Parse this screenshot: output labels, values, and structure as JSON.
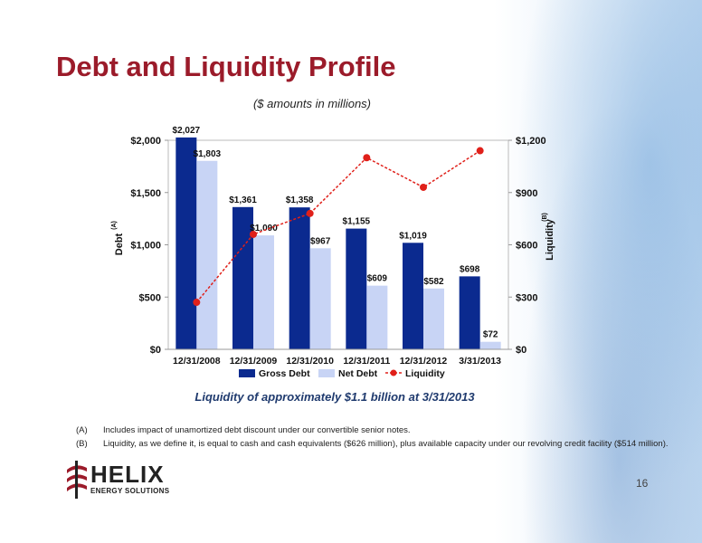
{
  "title": "Debt and Liquidity Profile",
  "subtitle": "($ amounts in millions)",
  "caption": "Liquidity of approximately $1.1 billion at 3/31/2013",
  "notes": [
    {
      "mark": "(A)",
      "text": "Includes impact of unamortized debt discount under our convertible senior notes."
    },
    {
      "mark": "(B)",
      "text": "Liquidity, as we define it, is equal to cash and cash equivalents ($626 million), plus available capacity under our revolving credit facility ($514 million)."
    }
  ],
  "logo": {
    "name": "HELIX",
    "sub": "ENERGY SOLUTIONS"
  },
  "page_number": "16",
  "colors": {
    "gross": "#0b2a8f",
    "net": "#c8d4f5",
    "liquidity": "#e0201a",
    "title": "#9b1b2a"
  },
  "chart_data": {
    "type": "bar",
    "categories": [
      "12/31/2008",
      "12/31/2009",
      "12/31/2010",
      "12/31/2011",
      "12/31/2012",
      "3/31/2013"
    ],
    "series": [
      {
        "name": "Gross Debt",
        "type": "bar",
        "axis": "left",
        "values": [
          2027,
          1361,
          1358,
          1155,
          1019,
          698
        ],
        "labels": [
          "$2,027",
          "$1,361",
          "$1,358",
          "$1,155",
          "$1,019",
          "$698"
        ]
      },
      {
        "name": "Net Debt",
        "type": "bar",
        "axis": "left",
        "values": [
          1803,
          1090,
          967,
          609,
          582,
          72
        ],
        "labels": [
          "$1,803",
          "$1,090",
          "$967",
          "$609",
          "$582",
          "$72"
        ]
      },
      {
        "name": "Liquidity",
        "type": "line",
        "axis": "right",
        "values": [
          270,
          660,
          780,
          1100,
          930,
          1140
        ]
      }
    ],
    "ylabel_left": "Debt",
    "ylabel_left_sup": "(A)",
    "ylabel_right": "Liquidity",
    "ylabel_right_sup": "(B)",
    "ylim_left": [
      0,
      2000
    ],
    "ylim_right": [
      0,
      1200
    ],
    "yticks_left": [
      "$0",
      "$500",
      "$1,000",
      "$1,500",
      "$2,000"
    ],
    "yticks_right": [
      "$0",
      "$300",
      "$600",
      "$900",
      "$1,200"
    ],
    "legend": "bottom",
    "grid": false
  }
}
